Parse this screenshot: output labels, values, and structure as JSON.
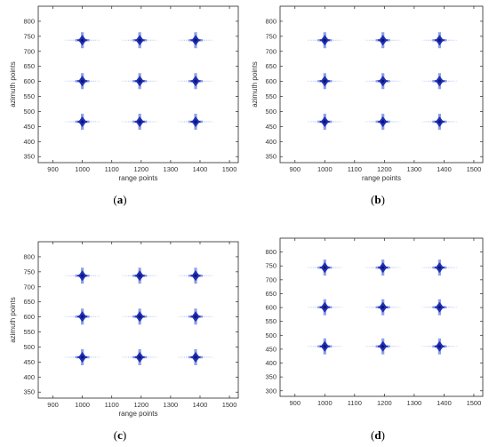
{
  "colors": {
    "target_outer": "#8fa0e8",
    "target_inner": "#1f2fb0",
    "target_core": "#0a1280",
    "axes": "#262626"
  },
  "chart_data": [
    {
      "type": "scatter",
      "caption": "a",
      "xlabel": "range points",
      "ylabel": "azimuth points",
      "xlim": [
        850,
        1530
      ],
      "ylim": [
        330,
        850
      ],
      "xticks": [
        900,
        1000,
        1100,
        1200,
        1300,
        1400,
        1500
      ],
      "yticks": [
        350,
        400,
        450,
        500,
        550,
        600,
        650,
        700,
        750,
        800
      ],
      "grid": false,
      "points": [
        {
          "x": 1000,
          "y": 737
        },
        {
          "x": 1195,
          "y": 737
        },
        {
          "x": 1385,
          "y": 737
        },
        {
          "x": 1000,
          "y": 601
        },
        {
          "x": 1195,
          "y": 601
        },
        {
          "x": 1385,
          "y": 601
        },
        {
          "x": 1000,
          "y": 466
        },
        {
          "x": 1195,
          "y": 466
        },
        {
          "x": 1385,
          "y": 466
        }
      ]
    },
    {
      "type": "scatter",
      "caption": "b",
      "xlabel": "range points",
      "ylabel": "azimuth points",
      "xlim": [
        850,
        1530
      ],
      "ylim": [
        330,
        850
      ],
      "xticks": [
        900,
        1000,
        1100,
        1200,
        1300,
        1400,
        1500
      ],
      "yticks": [
        350,
        400,
        450,
        500,
        550,
        600,
        650,
        700,
        750,
        800
      ],
      "grid": false,
      "points": [
        {
          "x": 1000,
          "y": 737
        },
        {
          "x": 1195,
          "y": 737
        },
        {
          "x": 1385,
          "y": 737
        },
        {
          "x": 1000,
          "y": 601
        },
        {
          "x": 1195,
          "y": 601
        },
        {
          "x": 1385,
          "y": 601
        },
        {
          "x": 1000,
          "y": 466
        },
        {
          "x": 1195,
          "y": 466
        },
        {
          "x": 1385,
          "y": 466
        }
      ]
    },
    {
      "type": "scatter",
      "caption": "c",
      "xlabel": "range points",
      "ylabel": "azimuth points",
      "xlim": [
        850,
        1530
      ],
      "ylim": [
        330,
        850
      ],
      "xticks": [
        900,
        1000,
        1100,
        1200,
        1300,
        1400,
        1500
      ],
      "yticks": [
        350,
        400,
        450,
        500,
        550,
        600,
        650,
        700,
        750,
        800
      ],
      "grid": false,
      "points": [
        {
          "x": 1000,
          "y": 737
        },
        {
          "x": 1195,
          "y": 737
        },
        {
          "x": 1385,
          "y": 737
        },
        {
          "x": 1000,
          "y": 601
        },
        {
          "x": 1195,
          "y": 601
        },
        {
          "x": 1385,
          "y": 601
        },
        {
          "x": 1000,
          "y": 466
        },
        {
          "x": 1195,
          "y": 466
        },
        {
          "x": 1385,
          "y": 466
        }
      ]
    },
    {
      "type": "scatter",
      "caption": "d",
      "xlabel": "",
      "ylabel": "",
      "xlim": [
        850,
        1530
      ],
      "ylim": [
        280,
        850
      ],
      "xticks": [
        900,
        1000,
        1100,
        1200,
        1300,
        1400,
        1500
      ],
      "yticks": [
        300,
        350,
        400,
        450,
        500,
        550,
        600,
        650,
        700,
        750,
        800
      ],
      "grid": false,
      "points": [
        {
          "x": 1000,
          "y": 744
        },
        {
          "x": 1195,
          "y": 744
        },
        {
          "x": 1385,
          "y": 744
        },
        {
          "x": 1000,
          "y": 601
        },
        {
          "x": 1195,
          "y": 601
        },
        {
          "x": 1385,
          "y": 601
        },
        {
          "x": 1000,
          "y": 460
        },
        {
          "x": 1195,
          "y": 460
        },
        {
          "x": 1385,
          "y": 460
        }
      ]
    }
  ]
}
